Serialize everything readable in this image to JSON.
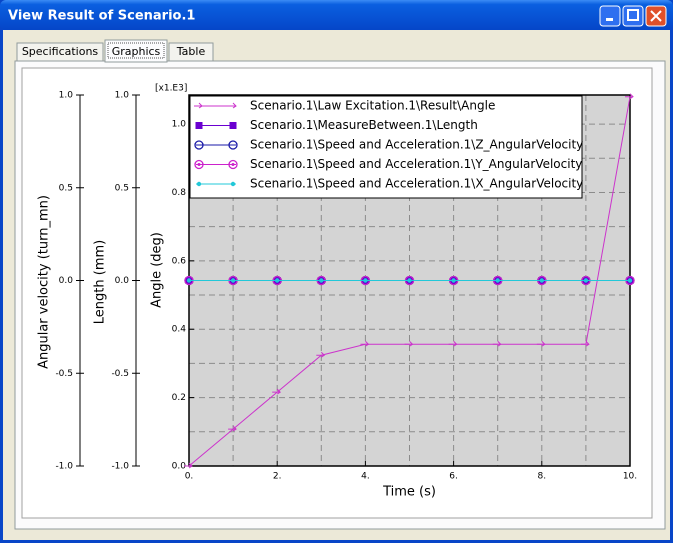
{
  "window": {
    "title": "View Result of Scenario.1"
  },
  "tabs": [
    "Specifications",
    "Graphics",
    "Table"
  ],
  "chart_data": {
    "type": "line",
    "x": [
      0,
      1,
      2,
      3,
      4,
      5,
      6,
      7,
      8,
      9,
      10
    ],
    "xlim": [
      0,
      10
    ],
    "xticks": [
      {
        "value": 0,
        "label": "0."
      },
      {
        "value": 2,
        "label": "2."
      },
      {
        "value": 4,
        "label": "4."
      },
      {
        "value": 6,
        "label": "6."
      },
      {
        "value": 8,
        "label": "8."
      },
      {
        "value": 10,
        "label": "10."
      }
    ],
    "xlabel": "Time (s)",
    "ylabel": "Angle (deg)",
    "y_multiplier": "[x1.E3]",
    "ylim": [
      0,
      1.085
    ],
    "yticks": [
      {
        "value": 0,
        "label": "0.0"
      },
      {
        "value": 0.2,
        "label": "0.2"
      },
      {
        "value": 0.4,
        "label": "0.4"
      },
      {
        "value": 0.6,
        "label": "0.6"
      },
      {
        "value": 0.8,
        "label": "0.8"
      },
      {
        "value": 1,
        "label": "1.0"
      }
    ],
    "y2label": "Length (mm)",
    "y2lim": [
      -1,
      1
    ],
    "y2ticks": [
      {
        "value": -1,
        "label": "-1.0"
      },
      {
        "value": -0.5,
        "label": "-0.5"
      },
      {
        "value": 0,
        "label": "0.0"
      },
      {
        "value": 0.5,
        "label": "0.5"
      },
      {
        "value": 1,
        "label": "1.0"
      }
    ],
    "y3label": "Angular velocity (turn_mn)",
    "y3lim": [
      -1,
      1
    ],
    "y3ticks": [
      {
        "value": -1,
        "label": "-1.0"
      },
      {
        "value": -0.5,
        "label": "-0.5"
      },
      {
        "value": 0,
        "label": "0.0"
      },
      {
        "value": 0.5,
        "label": "0.5"
      },
      {
        "value": 1,
        "label": "1.0"
      }
    ],
    "grid": true,
    "series": [
      {
        "name": "Scenario.1\\Law Excitation.1\\Result\\Angle",
        "color": "#cc33cc",
        "marker": "arrow",
        "values": [
          0,
          0.108,
          0.216,
          0.324,
          0.356,
          0.356,
          0.356,
          0.356,
          0.356,
          0.356,
          1.08
        ]
      },
      {
        "name": "Scenario.1\\MeasureBetween.1\\Length",
        "color": "#6a00d0",
        "marker": "square",
        "axis": "y2",
        "values": [
          0,
          0,
          0,
          0,
          0,
          0,
          0,
          0,
          0,
          0,
          0
        ]
      },
      {
        "name": "Scenario.1\\Speed and Acceleration.1\\Z_AngularVelocity",
        "color": "#1a1aa8",
        "marker": "circle",
        "axis": "y3",
        "values": [
          0,
          0,
          0,
          0,
          0,
          0,
          0,
          0,
          0,
          0,
          0
        ]
      },
      {
        "name": "Scenario.1\\Speed and Acceleration.1\\Y_AngularVelocity",
        "color": "#cc22cc",
        "marker": "ring",
        "axis": "y3",
        "values": [
          0,
          0,
          0,
          0,
          0,
          0,
          0,
          0,
          0,
          0,
          0
        ]
      },
      {
        "name": "Scenario.1\\Speed and Acceleration.1\\X_AngularVelocity",
        "color": "#22c8d8",
        "marker": "dot",
        "axis": "y3",
        "values": [
          0,
          0,
          0,
          0,
          0,
          0,
          0,
          0,
          0,
          0,
          0
        ]
      }
    ]
  }
}
